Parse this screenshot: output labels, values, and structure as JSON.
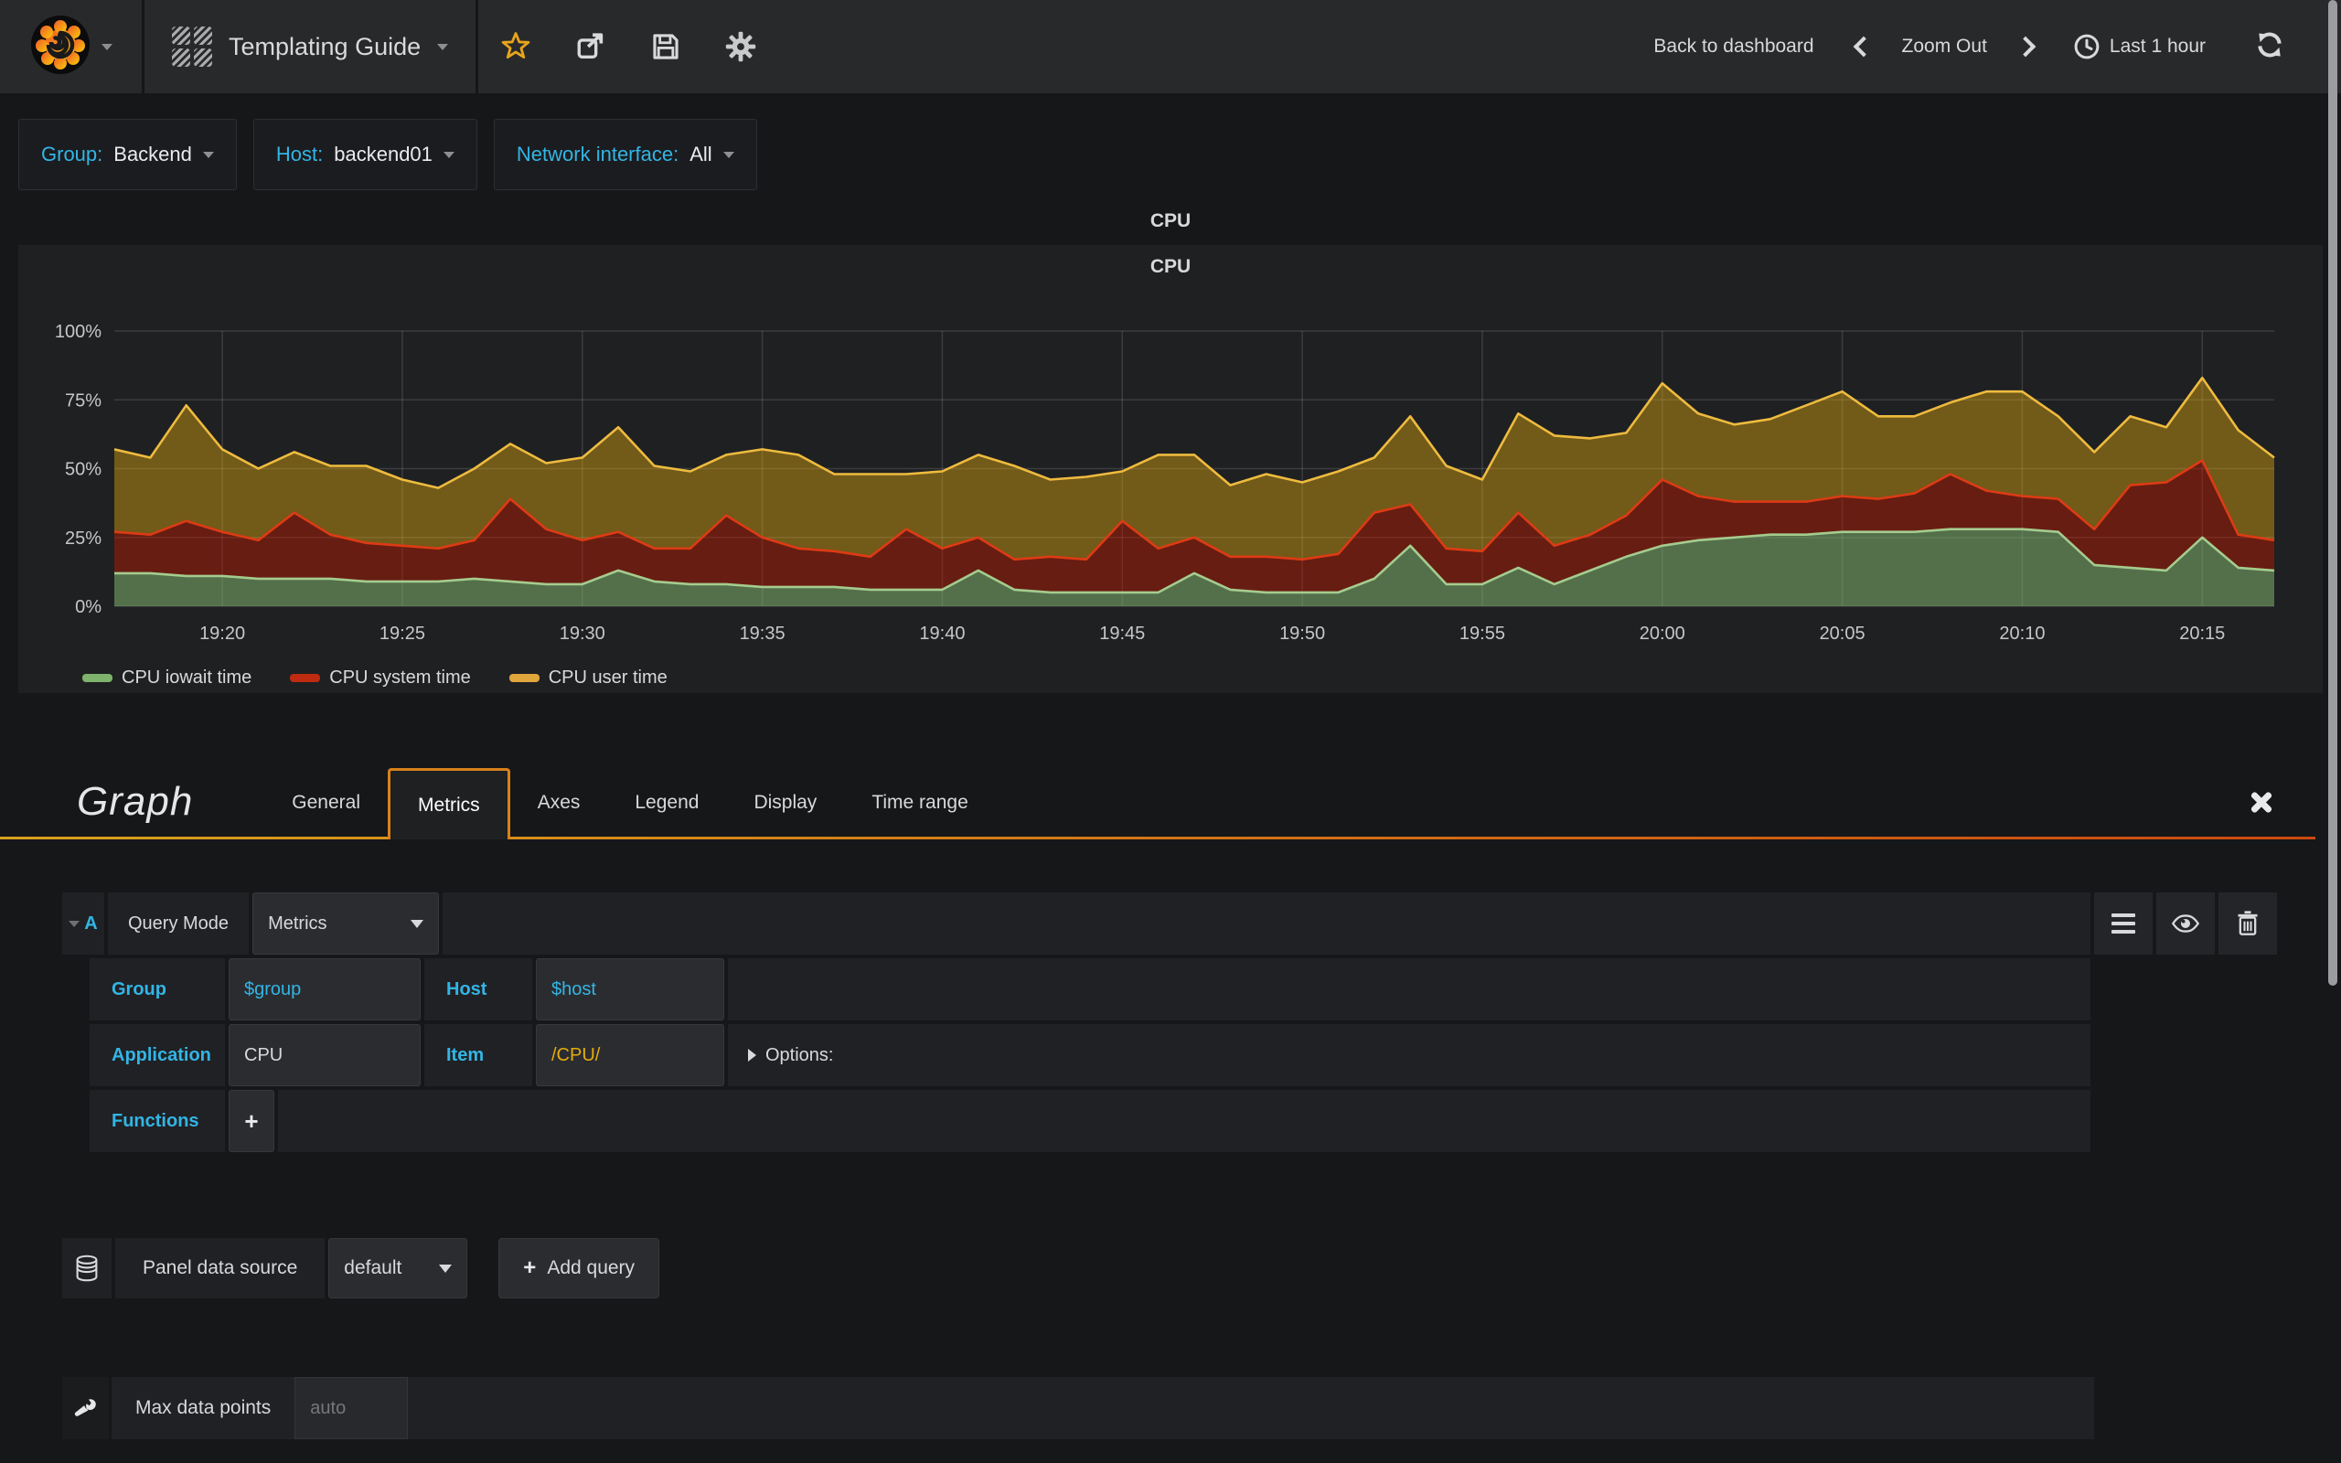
{
  "navbar": {
    "dashboard_title": "Templating Guide",
    "back_to_dashboard": "Back to dashboard",
    "zoom_out": "Zoom Out",
    "time_range": "Last 1 hour"
  },
  "variables": [
    {
      "label": "Group:",
      "value": "Backend"
    },
    {
      "label": "Host:",
      "value": "backend01"
    },
    {
      "label": "Network interface:",
      "value": "All"
    }
  ],
  "panel": {
    "header_title": "CPU",
    "title": "CPU"
  },
  "chart_data": {
    "type": "area",
    "stacked": true,
    "title": "CPU",
    "grid": true,
    "legend_position": "bottom-left",
    "ylim": [
      0,
      100
    ],
    "x": [
      "19:17",
      "19:18",
      "19:19",
      "19:20",
      "19:21",
      "19:22",
      "19:23",
      "19:24",
      "19:25",
      "19:26",
      "19:27",
      "19:28",
      "19:29",
      "19:30",
      "19:31",
      "19:32",
      "19:33",
      "19:34",
      "19:35",
      "19:36",
      "19:37",
      "19:38",
      "19:39",
      "19:40",
      "19:41",
      "19:42",
      "19:43",
      "19:44",
      "19:45",
      "19:46",
      "19:47",
      "19:48",
      "19:49",
      "19:50",
      "19:51",
      "19:52",
      "19:53",
      "19:54",
      "19:55",
      "19:56",
      "19:57",
      "19:58",
      "19:59",
      "20:00",
      "20:01",
      "20:02",
      "20:03",
      "20:04",
      "20:05",
      "20:06",
      "20:07",
      "20:08",
      "20:09",
      "20:10",
      "20:11",
      "20:12",
      "20:13",
      "20:14",
      "20:15",
      "20:16",
      "20:17"
    ],
    "x_ticks": [
      "19:20",
      "19:25",
      "19:30",
      "19:35",
      "19:40",
      "19:45",
      "19:50",
      "19:55",
      "20:00",
      "20:05",
      "20:10",
      "20:15"
    ],
    "y_ticks": {
      "labels": [
        "0%",
        "25%",
        "50%",
        "75%",
        "100%"
      ],
      "values": [
        0,
        25,
        50,
        75,
        100
      ]
    },
    "series": [
      {
        "name": "CPU iowait time",
        "line_color": "#A5CC8E",
        "fill_color": "rgba(126,178,109,0.55)",
        "legend_color": "#7EB26D",
        "values": [
          12,
          12,
          11,
          11,
          10,
          10,
          10,
          9,
          9,
          9,
          10,
          9,
          8,
          8,
          13,
          9,
          8,
          8,
          7,
          7,
          7,
          6,
          6,
          6,
          13,
          6,
          5,
          5,
          5,
          5,
          12,
          6,
          5,
          5,
          5,
          10,
          22,
          8,
          8,
          14,
          8,
          13,
          18,
          22,
          24,
          25,
          26,
          26,
          27,
          27,
          27,
          28,
          28,
          28,
          27,
          15,
          14,
          13,
          25,
          14,
          13
        ]
      },
      {
        "name": "CPU system time",
        "line_color": "#DD3B14",
        "fill_color": "rgba(191,27,0,0.45)",
        "legend_color": "#BF2B10",
        "values": [
          15,
          14,
          20,
          16,
          14,
          24,
          16,
          14,
          13,
          12,
          14,
          30,
          20,
          16,
          14,
          12,
          13,
          25,
          18,
          14,
          13,
          12,
          22,
          15,
          12,
          11,
          13,
          12,
          26,
          16,
          13,
          12,
          13,
          12,
          14,
          24,
          15,
          13,
          12,
          20,
          14,
          13,
          15,
          24,
          16,
          13,
          12,
          12,
          13,
          12,
          14,
          20,
          14,
          12,
          12,
          13,
          30,
          32,
          28,
          12,
          11
        ]
      },
      {
        "name": "CPU user time",
        "line_color": "#EEBB3F",
        "fill_color": "rgba(229,172,14,0.42)",
        "legend_color": "#E0A63C",
        "values": [
          30,
          28,
          42,
          30,
          26,
          22,
          25,
          28,
          24,
          22,
          26,
          20,
          24,
          30,
          38,
          30,
          28,
          22,
          32,
          34,
          28,
          30,
          20,
          28,
          30,
          34,
          28,
          30,
          18,
          34,
          30,
          26,
          30,
          28,
          30,
          20,
          32,
          30,
          26,
          36,
          40,
          35,
          30,
          35,
          30,
          28,
          30,
          35,
          38,
          30,
          28,
          26,
          36,
          38,
          30,
          28,
          25,
          20,
          30,
          38,
          30
        ]
      }
    ]
  },
  "editor": {
    "panel_type": "Graph",
    "tabs": [
      "General",
      "Metrics",
      "Axes",
      "Legend",
      "Display",
      "Time range"
    ],
    "active_tab": "Metrics",
    "query": {
      "ref": "A",
      "query_mode_label": "Query Mode",
      "query_mode_value": "Metrics",
      "fields": [
        {
          "label": "Group",
          "value": "$group"
        },
        {
          "label": "Host",
          "value": "$host"
        },
        {
          "label": "Application",
          "value": "CPU"
        },
        {
          "label": "Item",
          "value": "/CPU/"
        }
      ],
      "options_label": "Options:",
      "functions_label": "Functions",
      "plus": "+"
    },
    "datasource": {
      "label": "Panel data source",
      "value": "default",
      "plus": "+",
      "add_query_label": "Add query"
    },
    "max_data_points": {
      "label": "Max data points",
      "placeholder": "auto"
    }
  }
}
